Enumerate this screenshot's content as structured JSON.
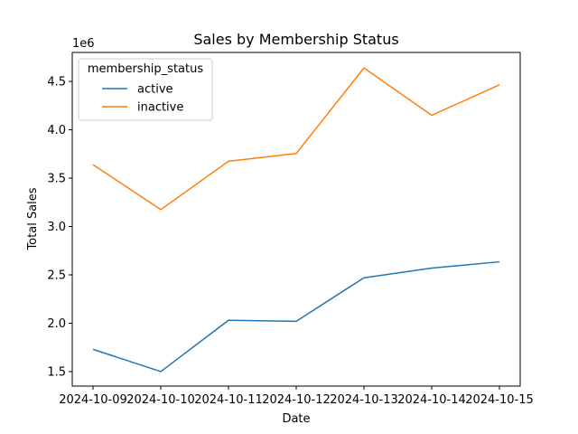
{
  "chart_data": {
    "type": "line",
    "title": "Sales by Membership Status",
    "xlabel": "Date",
    "ylabel": "Total Sales",
    "y_multiplier_label": "1e6",
    "categories": [
      "2024-10-09",
      "2024-10-10",
      "2024-10-11",
      "2024-10-12",
      "2024-10-13",
      "2024-10-14",
      "2024-10-15"
    ],
    "y_ticks": [
      1.5,
      2.0,
      2.5,
      3.0,
      3.5,
      4.0,
      4.5
    ],
    "y_tick_labels": [
      "1.5",
      "2.0",
      "2.5",
      "3.0",
      "3.5",
      "4.0",
      "4.5"
    ],
    "ylim": [
      1.35,
      4.8
    ],
    "legend": {
      "title": "membership_status",
      "placement": "upper-left"
    },
    "grid": false,
    "series": [
      {
        "name": "active",
        "color": "#1f77b4",
        "values": [
          1.73,
          1.5,
          2.03,
          2.02,
          2.47,
          2.57,
          2.635
        ]
      },
      {
        "name": "inactive",
        "color": "#ff7f0e",
        "values": [
          3.64,
          3.175,
          3.675,
          3.755,
          4.64,
          4.15,
          4.465
        ]
      }
    ]
  }
}
